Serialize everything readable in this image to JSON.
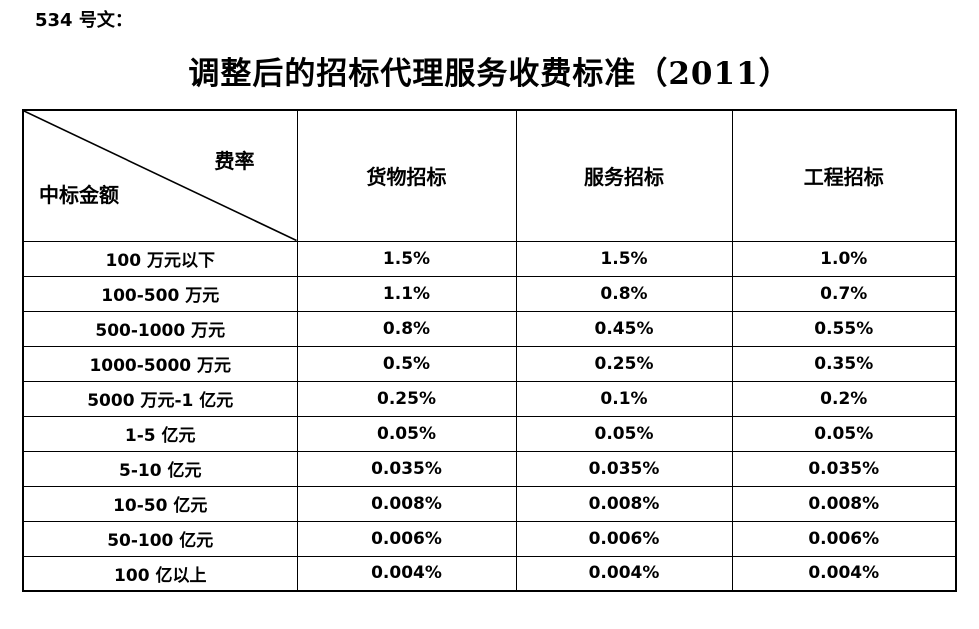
{
  "page": {
    "doc_number": "534 号文：",
    "title": "调整后的招标代理服务收费标准（2011）"
  },
  "table": {
    "corner": {
      "top_right": "费率",
      "bottom_left": "中标金额"
    },
    "columns": [
      "货物招标",
      "服务招标",
      "工程招标"
    ],
    "rows": [
      {
        "amount": "100 万元以下",
        "goods": "1.5%",
        "service": "1.5%",
        "engineering": "1.0%"
      },
      {
        "amount": "100-500 万元",
        "goods": "1.1%",
        "service": "0.8%",
        "engineering": "0.7%"
      },
      {
        "amount": "500-1000 万元",
        "goods": "0.8%",
        "service": "0.45%",
        "engineering": "0.55%"
      },
      {
        "amount": "1000-5000 万元",
        "goods": "0.5%",
        "service": "0.25%",
        "engineering": "0.35%"
      },
      {
        "amount": "5000 万元-1 亿元",
        "goods": "0.25%",
        "service": "0.1%",
        "engineering": "0.2%"
      },
      {
        "amount": "1-5 亿元",
        "goods": "0.05%",
        "service": "0.05%",
        "engineering": "0.05%"
      },
      {
        "amount": "5-10 亿元",
        "goods": "0.035%",
        "service": "0.035%",
        "engineering": "0.035%"
      },
      {
        "amount": "10-50 亿元",
        "goods": "0.008%",
        "service": "0.008%",
        "engineering": "0.008%"
      },
      {
        "amount": "50-100 亿元",
        "goods": "0.006%",
        "service": "0.006%",
        "engineering": "0.006%"
      },
      {
        "amount": "100 亿以上",
        "goods": "0.004%",
        "service": "0.004%",
        "engineering": "0.004%"
      }
    ]
  },
  "colors": {
    "text": "#000000",
    "border": "#000000",
    "background": "#ffffff"
  }
}
